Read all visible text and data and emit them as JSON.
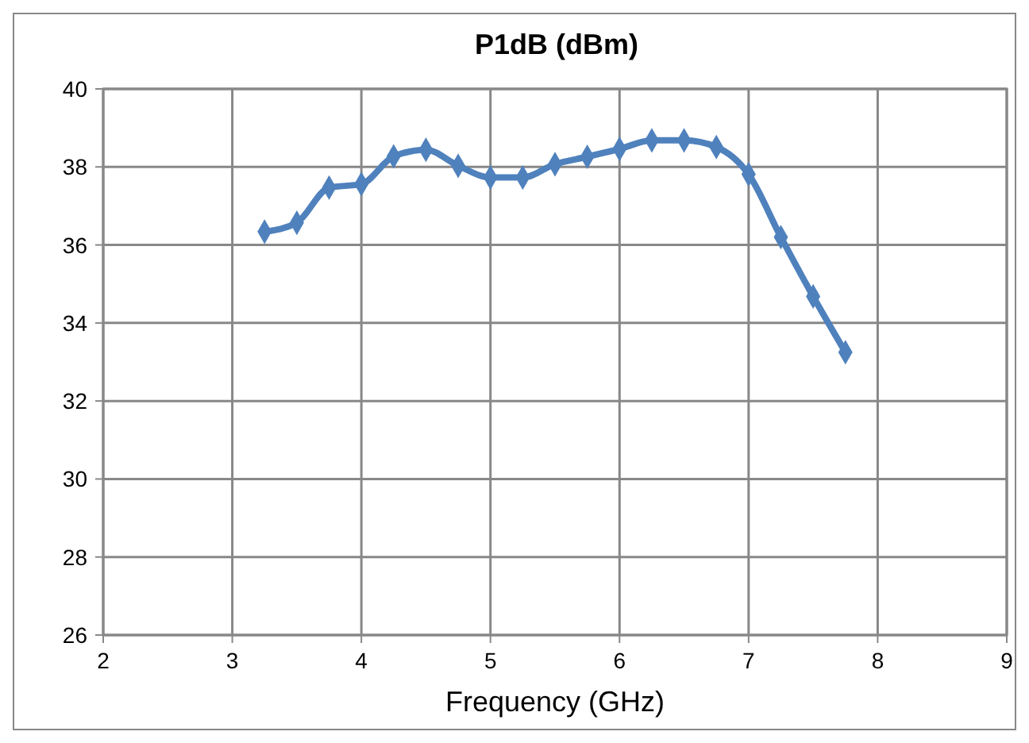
{
  "chart_data": {
    "type": "line",
    "title": "P1dB (dBm)",
    "xlabel": "Frequency (GHz)",
    "x": [
      3.25,
      3.5,
      3.75,
      4,
      4.25,
      4.5,
      4.75,
      5,
      5.25,
      5.5,
      5.75,
      6,
      6.25,
      6.5,
      6.75,
      7,
      7.25,
      7.5,
      7.75
    ],
    "series": [
      {
        "color": "#4f81bd",
        "values": [
          36.34,
          36.57,
          37.47,
          37.56,
          38.27,
          38.44,
          38.03,
          37.73,
          37.73,
          38.07,
          38.26,
          38.46,
          38.68,
          38.68,
          38.51,
          37.81,
          36.2,
          34.68,
          33.25
        ]
      }
    ],
    "xlim": [
      2,
      9
    ],
    "xticks": [
      2,
      3,
      4,
      5,
      6,
      7,
      8,
      9
    ],
    "ylim": [
      26,
      40
    ],
    "yticks": [
      26,
      28,
      30,
      32,
      34,
      36,
      38,
      40
    ],
    "grid": true,
    "marker": "diamond",
    "line_style": "solid"
  }
}
